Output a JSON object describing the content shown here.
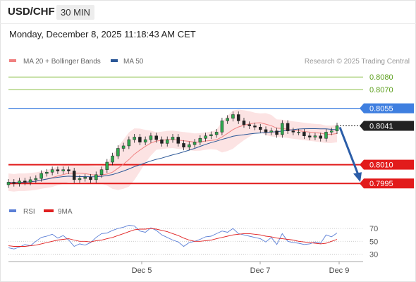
{
  "header": {
    "symbol": "USD/CHF",
    "timeframe": "30 MIN",
    "datetime": "Monday, December 8, 2025 11:18:43 AM CET"
  },
  "legend": {
    "ma20_label": "MA 20 + Bollinger Bands",
    "ma50_label": "MA 50",
    "credit": "Research © 2025 Trading Central",
    "colors": {
      "ma20": "#f08080",
      "ma50": "#2b5797",
      "bands_fill": "#fbd9d9"
    }
  },
  "rsi_legend": {
    "rsi_label": "RSI",
    "ma_label": "9MA",
    "colors": {
      "rsi": "#5b7fd6",
      "ma": "#e02020"
    }
  },
  "chart_data": [
    {
      "type": "candlestick",
      "ylim": [
        0.7985,
        0.8088
      ],
      "x_ticks": [
        "Dec 5",
        "Dec 7",
        "Dec 9"
      ],
      "price_ticks": [
        "0.8080",
        "0.8070"
      ],
      "levels": [
        {
          "label": "0.8080",
          "value": 0.808,
          "color": "#8cc04a",
          "style": "thin"
        },
        {
          "label": "0.8070",
          "value": 0.807,
          "color": "#8cc04a",
          "style": "thin"
        },
        {
          "label": "0.8055",
          "value": 0.8055,
          "color": "#3f7fe0",
          "style": "resistance"
        },
        {
          "label": "0.8041",
          "value": 0.8041,
          "color": "#222222",
          "style": "current"
        },
        {
          "label": "0.8010",
          "value": 0.801,
          "color": "#e21b1b",
          "style": "support"
        },
        {
          "label": "0.7995",
          "value": 0.7995,
          "color": "#e21b1b",
          "style": "support"
        }
      ],
      "forecast": {
        "from": 0.8041,
        "to": 0.7995,
        "color": "#2b5da8"
      },
      "close_series": [
        0.7996,
        0.7995,
        0.7997,
        0.7996,
        0.7998,
        0.7999,
        0.8003,
        0.8004,
        0.8006,
        0.8005,
        0.8006,
        0.8005,
        0.7998,
        0.7999,
        0.8,
        0.7998,
        0.8002,
        0.8006,
        0.8012,
        0.8017,
        0.8023,
        0.8025,
        0.803,
        0.8032,
        0.8028,
        0.803,
        0.8033,
        0.803,
        0.8027,
        0.803,
        0.8032,
        0.8027,
        0.8024,
        0.8026,
        0.8028,
        0.8031,
        0.8033,
        0.8034,
        0.8036,
        0.8045,
        0.8047,
        0.805,
        0.8045,
        0.8042,
        0.8041,
        0.804,
        0.8038,
        0.8036,
        0.8037,
        0.8034,
        0.8043,
        0.8037,
        0.8036,
        0.8036,
        0.8033,
        0.8032,
        0.8033,
        0.8031,
        0.8036,
        0.8037,
        0.8041
      ]
    },
    {
      "type": "line",
      "ylim": [
        25,
        80
      ],
      "y_ticks": [
        70,
        50,
        30
      ],
      "series": [
        {
          "name": "RSI",
          "values": [
            40,
            38,
            41,
            45,
            43,
            50,
            56,
            58,
            61,
            55,
            59,
            52,
            42,
            46,
            44,
            48,
            56,
            62,
            63,
            67,
            70,
            72,
            75,
            74,
            66,
            64,
            71,
            67,
            60,
            56,
            52,
            49,
            42,
            48,
            50,
            53,
            57,
            58,
            62,
            66,
            64,
            70,
            62,
            60,
            58,
            56,
            54,
            49,
            56,
            45,
            62,
            50,
            48,
            47,
            45,
            46,
            49,
            47,
            60,
            57,
            63
          ]
        },
        {
          "name": "9MA",
          "values": [
            43,
            42,
            42,
            42,
            43,
            44,
            46,
            48,
            50,
            52,
            53,
            54,
            52,
            50,
            50,
            49,
            51,
            52,
            54,
            56,
            59,
            62,
            65,
            68,
            69,
            69,
            70,
            69,
            67,
            65,
            62,
            59,
            55,
            52,
            50,
            50,
            51,
            52,
            54,
            56,
            58,
            60,
            61,
            62,
            62,
            61,
            60,
            58,
            57,
            55,
            54,
            53,
            52,
            50,
            49,
            48,
            47,
            46,
            47,
            50,
            53
          ]
        }
      ]
    }
  ]
}
